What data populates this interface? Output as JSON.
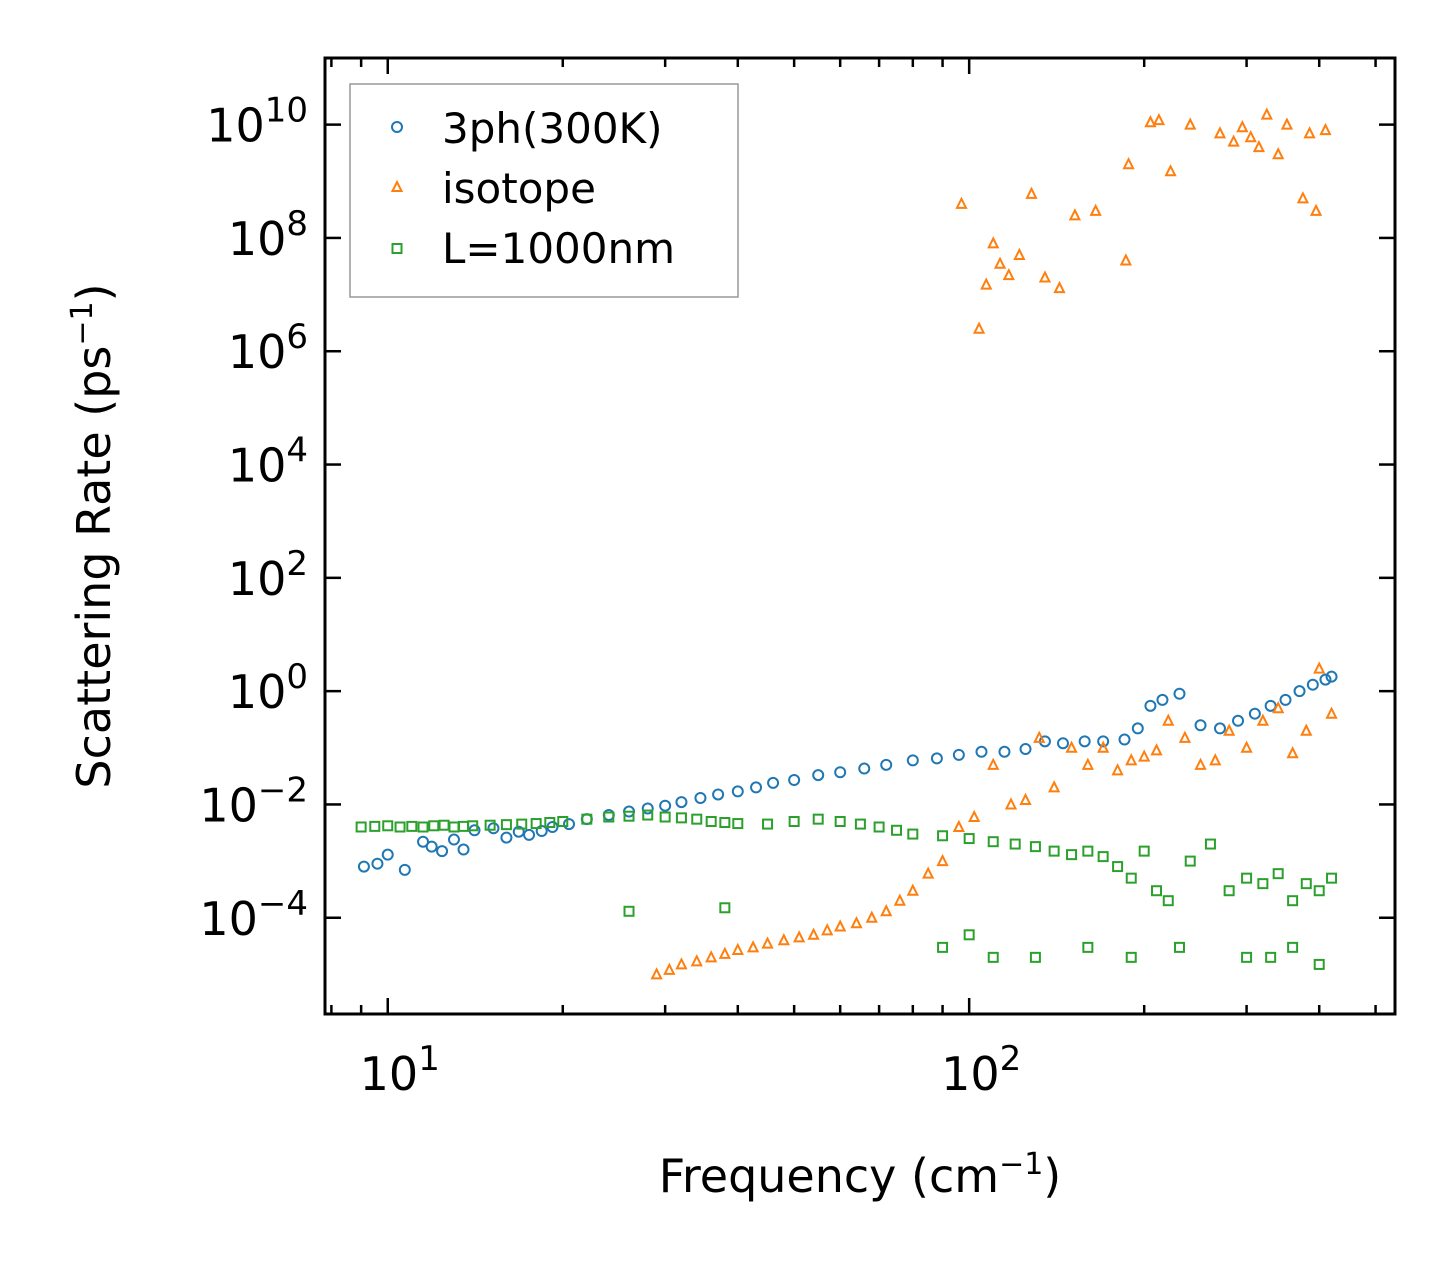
{
  "chart_data": {
    "type": "scatter",
    "title": "",
    "xlabel": "Frequency (cm",
    "xlabel_sup": "−1",
    "xlabel_end": ")",
    "ylabel": "Scattering Rate (ps",
    "ylabel_sup": "−1",
    "ylabel_end": ")",
    "xscale": "log",
    "yscale": "log",
    "xlim": [
      7.8,
      540
    ],
    "ylim": [
      2e-06,
      150000000000
    ],
    "x_ticks": [
      {
        "value": 10,
        "base": "10",
        "exp": "1"
      },
      {
        "value": 100,
        "base": "10",
        "exp": "2"
      }
    ],
    "y_ticks": [
      {
        "value": 0.0001,
        "base": "10",
        "exp": "−4"
      },
      {
        "value": 0.01,
        "base": "10",
        "exp": "−2"
      },
      {
        "value": 1,
        "base": "10",
        "exp": "0"
      },
      {
        "value": 100,
        "base": "10",
        "exp": "2"
      },
      {
        "value": 10000,
        "base": "10",
        "exp": "4"
      },
      {
        "value": 1000000,
        "base": "10",
        "exp": "6"
      },
      {
        "value": 100000000,
        "base": "10",
        "exp": "8"
      },
      {
        "value": 10000000000,
        "base": "10",
        "exp": "10"
      }
    ],
    "legend_position": "top-left",
    "series": [
      {
        "name": "3ph(300K)",
        "marker": "circle",
        "color": "#1f77b4",
        "x": [
          9.1,
          9.6,
          10.0,
          10.7,
          11.5,
          11.9,
          12.4,
          13.0,
          13.5,
          14.1,
          15.2,
          16.0,
          16.8,
          17.5,
          18.4,
          19.2,
          20.5,
          22.0,
          24.0,
          26.0,
          28.0,
          30.0,
          32.0,
          34.5,
          37.0,
          40.0,
          43.0,
          46.0,
          50.0,
          55.0,
          60.0,
          66.0,
          72.0,
          80.0,
          88.0,
          96.0,
          105.0,
          115.0,
          125.0,
          135.0,
          145.0,
          158.0,
          170.0,
          185.0,
          195.0,
          205.0,
          215.0,
          230.0,
          250.0,
          270.0,
          290.0,
          310.0,
          330.0,
          350.0,
          370.0,
          390.0,
          410.0,
          420.0
        ],
        "y": [
          0.0008,
          0.0009,
          0.0013,
          0.0007,
          0.0022,
          0.0018,
          0.0015,
          0.0024,
          0.0016,
          0.0035,
          0.0038,
          0.0026,
          0.0033,
          0.0029,
          0.0034,
          0.004,
          0.0045,
          0.0055,
          0.0065,
          0.0075,
          0.0085,
          0.0095,
          0.011,
          0.013,
          0.015,
          0.017,
          0.02,
          0.024,
          0.027,
          0.033,
          0.037,
          0.043,
          0.05,
          0.06,
          0.065,
          0.075,
          0.085,
          0.085,
          0.095,
          0.13,
          0.12,
          0.13,
          0.13,
          0.14,
          0.22,
          0.55,
          0.7,
          0.9,
          0.25,
          0.22,
          0.3,
          0.4,
          0.55,
          0.7,
          1.0,
          1.3,
          1.6,
          1.8
        ]
      },
      {
        "name": "isotope",
        "marker": "triangle",
        "color": "#ff7f0e",
        "x": [
          29.0,
          30.5,
          32.0,
          34.0,
          36.0,
          38.0,
          40.0,
          42.5,
          45.0,
          48.0,
          51.0,
          54.0,
          57.0,
          60.0,
          64.0,
          68.0,
          72.0,
          76.0,
          80.0,
          85.0,
          90.0,
          96.0,
          102.0,
          110.0,
          118.0,
          125.0,
          132.0,
          140.0,
          150.0,
          160.0,
          170.0,
          180.0,
          190.0,
          200.0,
          210.0,
          220.0,
          235.0,
          250.0,
          265.0,
          280.0,
          300.0,
          320.0,
          340.0,
          360.0,
          380.0,
          400.0,
          420.0,
          97.0,
          104.0,
          107.0,
          110.0,
          113.0,
          117.0,
          122.0,
          128.0,
          135.0,
          143.0,
          152.0,
          165.0,
          186.0,
          188.0,
          205.0,
          212.0,
          222.0,
          240.0,
          270.0,
          285.0,
          295.0,
          305.0,
          315.0,
          325.0,
          340.0,
          352.0,
          375.0,
          385.0,
          395.0,
          410.0
        ],
        "y": [
          1e-05,
          1.2e-05,
          1.5e-05,
          1.7e-05,
          2e-05,
          2.3e-05,
          2.7e-05,
          3e-05,
          3.5e-05,
          4e-05,
          4.5e-05,
          5e-05,
          6e-05,
          7e-05,
          8e-05,
          0.0001,
          0.00013,
          0.0002,
          0.0003,
          0.0006,
          0.001,
          0.004,
          0.006,
          0.05,
          0.01,
          0.012,
          0.15,
          0.02,
          0.1,
          0.05,
          0.1,
          0.04,
          0.06,
          0.07,
          0.09,
          0.3,
          0.15,
          0.05,
          0.06,
          0.2,
          0.1,
          0.3,
          0.5,
          0.08,
          0.2,
          2.5,
          0.4,
          400000000,
          2500000,
          15000000,
          80000000,
          35000000,
          22000000,
          50000000,
          600000000,
          20000000,
          13000000,
          250000000,
          300000000,
          40000000,
          2000000000,
          11000000000,
          12000000000,
          1500000000,
          10000000000,
          7000000000,
          5000000000,
          9000000000,
          6000000000,
          4000000000,
          15000000000,
          3000000000,
          10000000000,
          500000000,
          7000000000,
          300000000,
          8000000000
        ]
      },
      {
        "name": "L=1000nm",
        "marker": "square",
        "color": "#2ca02c",
        "x": [
          9.0,
          9.5,
          10.0,
          10.5,
          11.0,
          11.5,
          12.0,
          12.5,
          13.0,
          13.5,
          14.0,
          15.0,
          16.0,
          17.0,
          18.0,
          19.0,
          20.0,
          22.0,
          24.0,
          26.0,
          28.0,
          30.0,
          32.0,
          34.0,
          36.0,
          38.0,
          40.0,
          45.0,
          50.0,
          55.0,
          60.0,
          65.0,
          70.0,
          75.0,
          80.0,
          90.0,
          100.0,
          110.0,
          120.0,
          130.0,
          140.0,
          150.0,
          160.0,
          170.0,
          180.0,
          190.0,
          200.0,
          210.0,
          220.0,
          240.0,
          260.0,
          280.0,
          300.0,
          320.0,
          340.0,
          360.0,
          380.0,
          400.0,
          420.0,
          26.0,
          38.0,
          90.0,
          100.0,
          110.0,
          130.0,
          160.0,
          190.0,
          230.0,
          300.0,
          330.0,
          360.0,
          400.0
        ],
        "y": [
          0.004,
          0.0041,
          0.0042,
          0.004,
          0.0041,
          0.004,
          0.0042,
          0.0043,
          0.004,
          0.0041,
          0.0042,
          0.0043,
          0.0044,
          0.0045,
          0.0046,
          0.0048,
          0.005,
          0.0055,
          0.006,
          0.0062,
          0.0065,
          0.006,
          0.0058,
          0.0055,
          0.005,
          0.0048,
          0.0046,
          0.0045,
          0.005,
          0.0055,
          0.005,
          0.0045,
          0.004,
          0.0035,
          0.003,
          0.0028,
          0.0025,
          0.0022,
          0.002,
          0.0018,
          0.0015,
          0.0013,
          0.0015,
          0.0012,
          0.0008,
          0.0005,
          0.0015,
          0.0003,
          0.0002,
          0.001,
          0.002,
          0.0003,
          0.0005,
          0.0004,
          0.0006,
          0.0002,
          0.0004,
          0.0003,
          0.0005,
          0.00013,
          0.00015,
          3e-05,
          5e-05,
          2e-05,
          2e-05,
          3e-05,
          2e-05,
          3e-05,
          2e-05,
          2e-05,
          3e-05,
          1.5e-05
        ]
      }
    ]
  }
}
